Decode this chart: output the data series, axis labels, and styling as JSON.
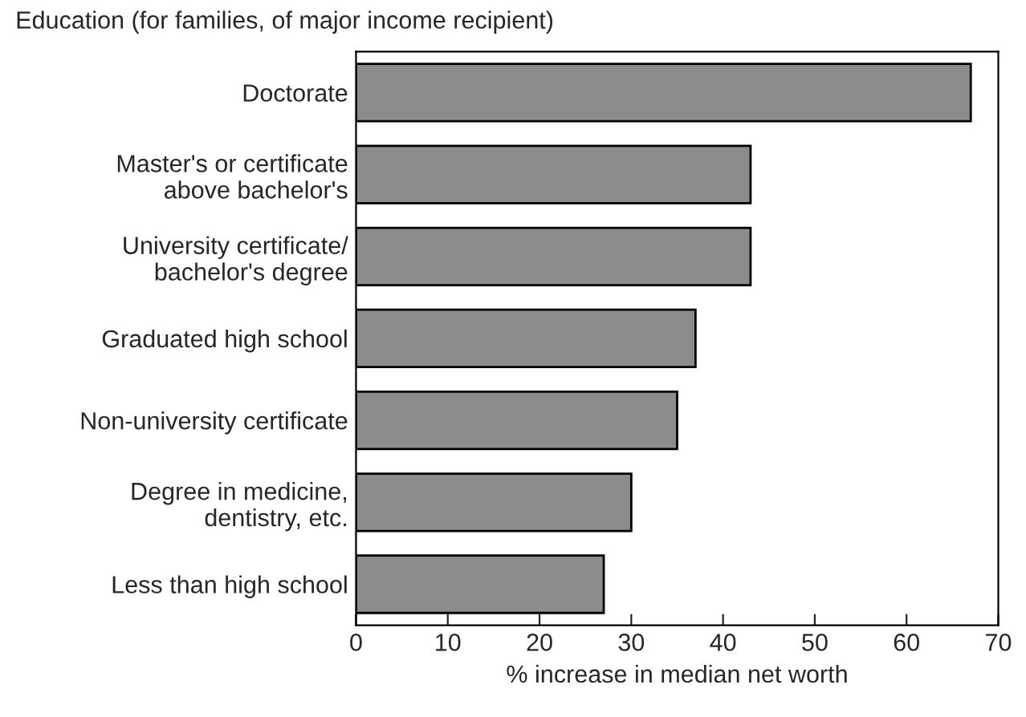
{
  "chart_data": {
    "type": "bar",
    "orientation": "horizontal",
    "title": "Education (for families, of major income recipient)",
    "xlabel": "% increase in median net worth",
    "categories": [
      "Doctorate",
      "Master's or certificate\nabove bachelor's",
      "University certificate/\nbachelor's degree",
      "Graduated high school",
      "Non-university certificate",
      "Degree in medicine,\ndentistry, etc.",
      "Less than high school"
    ],
    "values": [
      67,
      43,
      43,
      37,
      35,
      30,
      27
    ],
    "color": "#8c8c8c",
    "xlim": [
      0,
      70
    ],
    "xticks": [
      0,
      10,
      20,
      30,
      40,
      50,
      60,
      70
    ],
    "grid": false,
    "legend": false
  }
}
